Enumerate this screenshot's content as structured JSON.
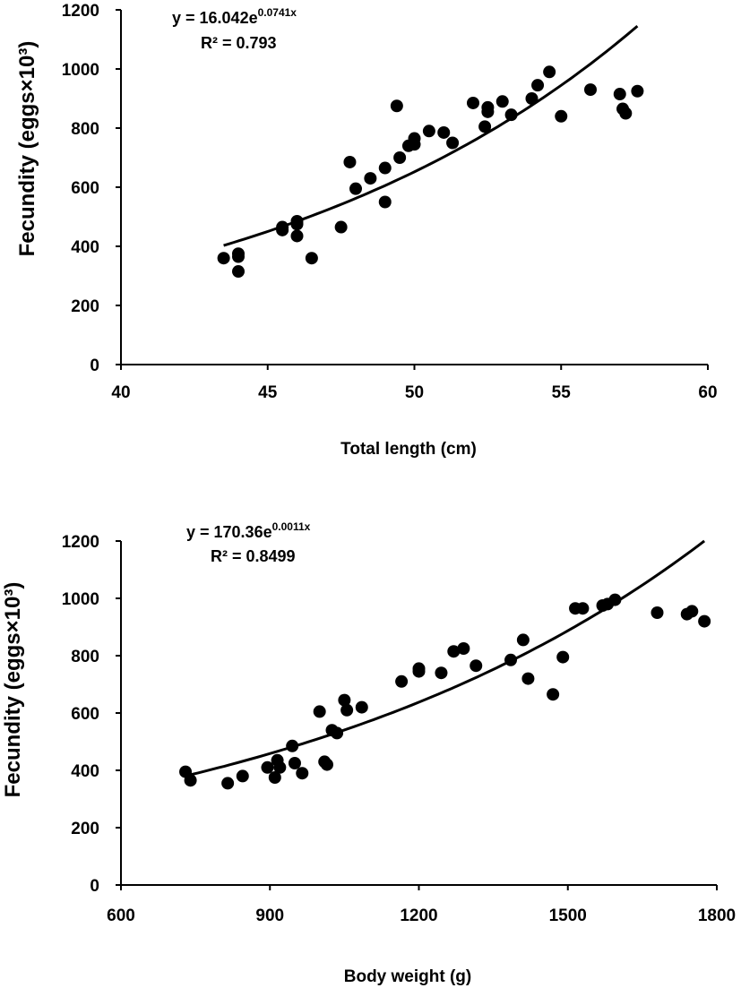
{
  "chart_data": [
    {
      "type": "scatter",
      "xlabel": "Total length (cm)",
      "ylabel": "Fecundity (eggs×10³)",
      "xlim": [
        40,
        60
      ],
      "ylim": [
        0,
        1200
      ],
      "xticks": [
        "40",
        "45",
        "50",
        "55",
        "60"
      ],
      "yticks": [
        "0",
        "200",
        "400",
        "600",
        "800",
        "1000",
        "1200"
      ],
      "grid": false,
      "annotation": {
        "equation_base": "y = 16.042e",
        "equation_exponent": "0.0741x",
        "r2": "R² = 0.793"
      },
      "trendline": {
        "type": "exponential",
        "a": 16.042,
        "b": 0.0741,
        "x_range": [
          43.5,
          57.6
        ]
      },
      "series": [
        {
          "x": [
            43.5,
            44.0,
            44.0,
            44.0,
            45.5,
            45.5,
            46.0,
            46.0,
            46.0,
            46.5,
            47.5,
            47.8,
            48.0,
            48.5,
            49.0,
            49.0,
            49.4,
            49.5,
            49.8,
            50.0,
            50.0,
            50.5,
            51.0,
            51.3,
            52.0,
            52.4,
            52.5,
            52.5,
            53.0,
            53.3,
            54.0,
            54.2,
            54.6,
            55.0,
            56.0,
            57.0,
            57.1,
            57.2,
            57.6
          ],
          "y": [
            360,
            375,
            365,
            315,
            465,
            455,
            485,
            475,
            435,
            360,
            465,
            685,
            595,
            630,
            550,
            665,
            875,
            700,
            740,
            765,
            745,
            790,
            785,
            750,
            885,
            805,
            870,
            855,
            890,
            845,
            900,
            945,
            990,
            840,
            930,
            915,
            865,
            850,
            925
          ]
        }
      ]
    },
    {
      "type": "scatter",
      "xlabel": "Body weight (g)",
      "ylabel": "Fecundity (eggs×10³)",
      "xlim": [
        600,
        1800
      ],
      "ylim": [
        0,
        1200
      ],
      "xticks": [
        "600",
        "900",
        "1200",
        "1500",
        "1800"
      ],
      "yticks": [
        "0",
        "200",
        "400",
        "600",
        "800",
        "1000",
        "1200"
      ],
      "grid": false,
      "annotation": {
        "equation_base": "y = 170.36e",
        "equation_exponent": "0.0011x",
        "r2": "R² = 0.8499"
      },
      "trendline": {
        "type": "exponential",
        "a": 170.36,
        "b": 0.0011,
        "x_range": [
          730,
          1775
        ]
      },
      "series": [
        {
          "x": [
            730,
            740,
            815,
            845,
            895,
            910,
            915,
            920,
            945,
            950,
            965,
            1000,
            1010,
            1015,
            1025,
            1035,
            1050,
            1055,
            1085,
            1165,
            1200,
            1200,
            1245,
            1270,
            1290,
            1315,
            1385,
            1410,
            1420,
            1470,
            1490,
            1515,
            1530,
            1570,
            1580,
            1595,
            1680,
            1740,
            1750,
            1775
          ],
          "y": [
            395,
            365,
            355,
            380,
            410,
            375,
            435,
            410,
            485,
            425,
            390,
            605,
            430,
            420,
            540,
            530,
            645,
            610,
            620,
            710,
            755,
            745,
            740,
            815,
            825,
            765,
            785,
            855,
            720,
            665,
            795,
            965,
            965,
            975,
            980,
            995,
            950,
            945,
            955,
            920
          ]
        }
      ]
    }
  ]
}
